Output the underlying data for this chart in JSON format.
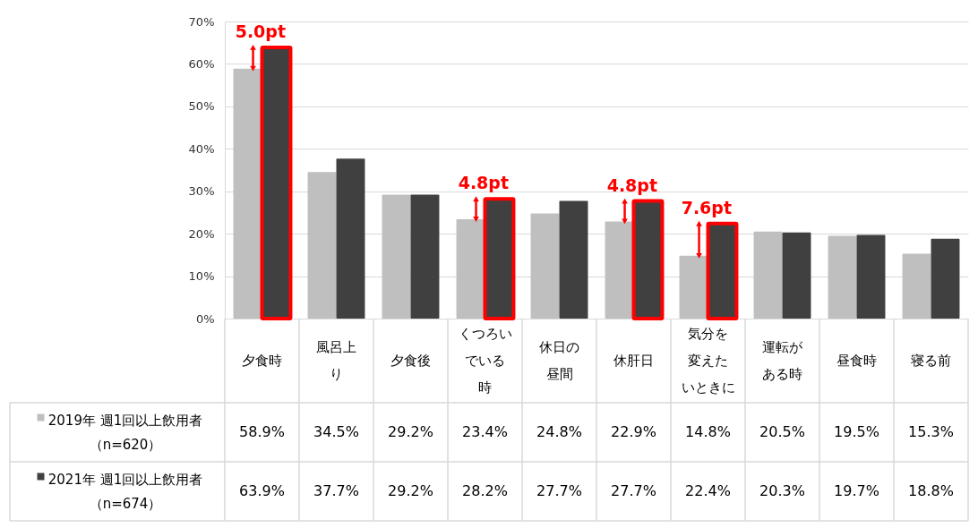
{
  "chart_data": {
    "type": "bar",
    "categories": [
      "夕食時",
      "風呂上り",
      "夕食後",
      "くつろいでいる時",
      "休日の昼間",
      "休肝日",
      "気分を変えたいときに",
      "運転がある時",
      "昼食時",
      "寝る前"
    ],
    "series": [
      {
        "name": "2019年 週1回以上飲用者（n=620）",
        "color": "#bfbfbf",
        "values": [
          58.9,
          34.5,
          29.2,
          23.4,
          24.8,
          22.9,
          14.8,
          20.5,
          19.5,
          15.3
        ],
        "value_labels": [
          "58.9%",
          "34.5%",
          "29.2%",
          "23.4%",
          "24.8%",
          "22.9%",
          "14.8%",
          "20.5%",
          "19.5%",
          "15.3%"
        ]
      },
      {
        "name": "2021年 週1回以上飲用者（n=674）",
        "color": "#404040",
        "values": [
          63.9,
          37.7,
          29.2,
          28.2,
          27.7,
          27.7,
          22.4,
          20.3,
          19.7,
          18.8
        ],
        "value_labels": [
          "63.9%",
          "37.7%",
          "29.2%",
          "28.2%",
          "27.7%",
          "27.7%",
          "22.4%",
          "20.3%",
          "19.7%",
          "18.8%"
        ]
      }
    ],
    "ylim": [
      0,
      70
    ],
    "yticks": [
      {
        "value": 0,
        "label": "0%"
      },
      {
        "value": 10,
        "label": "10%"
      },
      {
        "value": 20,
        "label": "20%"
      },
      {
        "value": 30,
        "label": "30%"
      },
      {
        "value": 40,
        "label": "40%"
      },
      {
        "value": 50,
        "label": "50%"
      },
      {
        "value": 60,
        "label": "60%"
      },
      {
        "value": 70,
        "label": "70%"
      }
    ],
    "grid": "y",
    "legend": "bottom left",
    "annotations": [
      {
        "text": "5.0pt",
        "x": "夕食時",
        "y": 63.9
      },
      {
        "text": "4.8pt",
        "x": "くつろいでいる時",
        "y": 28.2
      },
      {
        "text": "4.8pt",
        "x": "休肝日",
        "y": 27.7
      },
      {
        "text": "7.6pt",
        "x": "気分を変えたいときに",
        "y": 22.4
      }
    ]
  }
}
